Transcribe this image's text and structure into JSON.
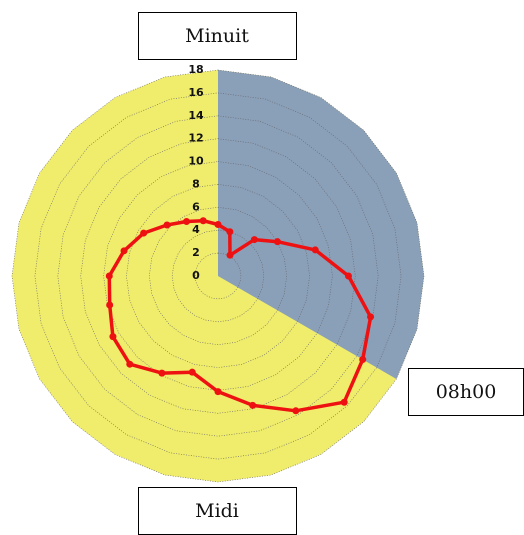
{
  "chart_data": {
    "type": "radar",
    "values": [
      4.5,
      4,
      2.1,
      4.5,
      6,
      8.8,
      11.4,
      13.8,
      14.6,
      15.6,
      13.6,
      11.7,
      10.1,
      8.7,
      9.8,
      10.9,
      10.6,
      9.8,
      9.5,
      8.5,
      7.5,
      6.3,
      5.5,
      5
    ],
    "color": "#ee1111",
    "rlim": [
      0,
      18
    ],
    "rticks": [
      0,
      2,
      4,
      6,
      8,
      10,
      12,
      14,
      16,
      18
    ],
    "background_color": "#f0ec6c",
    "sectors": [
      {
        "from": 0,
        "to": 8,
        "color": "#8a9fb8"
      }
    ],
    "annotations": [
      "Minuit",
      "08h00",
      "Midi"
    ]
  }
}
